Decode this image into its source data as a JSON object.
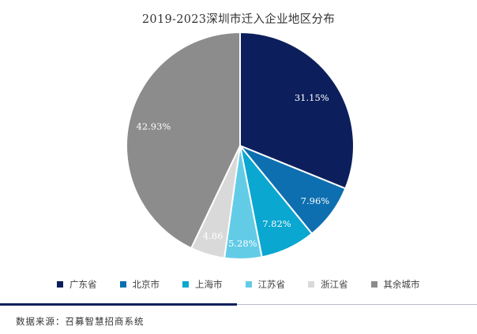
{
  "chart_data": {
    "type": "pie",
    "title": "2019-2023深圳市迁入企业地区分布",
    "slices": [
      {
        "label": "广东省",
        "value": 31.15,
        "display": "31.15%",
        "color": "#0c1f5c"
      },
      {
        "label": "北京市",
        "value": 7.96,
        "display": "7.96%",
        "color": "#0d6fb0"
      },
      {
        "label": "上海市",
        "value": 7.82,
        "display": "7.82%",
        "color": "#0aa7d1"
      },
      {
        "label": "江苏省",
        "value": 5.28,
        "display": "5.28%",
        "color": "#62cce6"
      },
      {
        "label": "浙江省",
        "value": 4.86,
        "display": "4.86",
        "color": "#d9d9d9"
      },
      {
        "label": "其余城市",
        "value": 42.93,
        "display": "42.93%",
        "color": "#8c8c8c"
      }
    ],
    "legend_position": "bottom"
  },
  "footer": {
    "source": "数据来源：召募智慧招商系统"
  },
  "colors": {
    "divider_dark": "#0b1f5c",
    "divider_light": "#b8bcc8"
  }
}
